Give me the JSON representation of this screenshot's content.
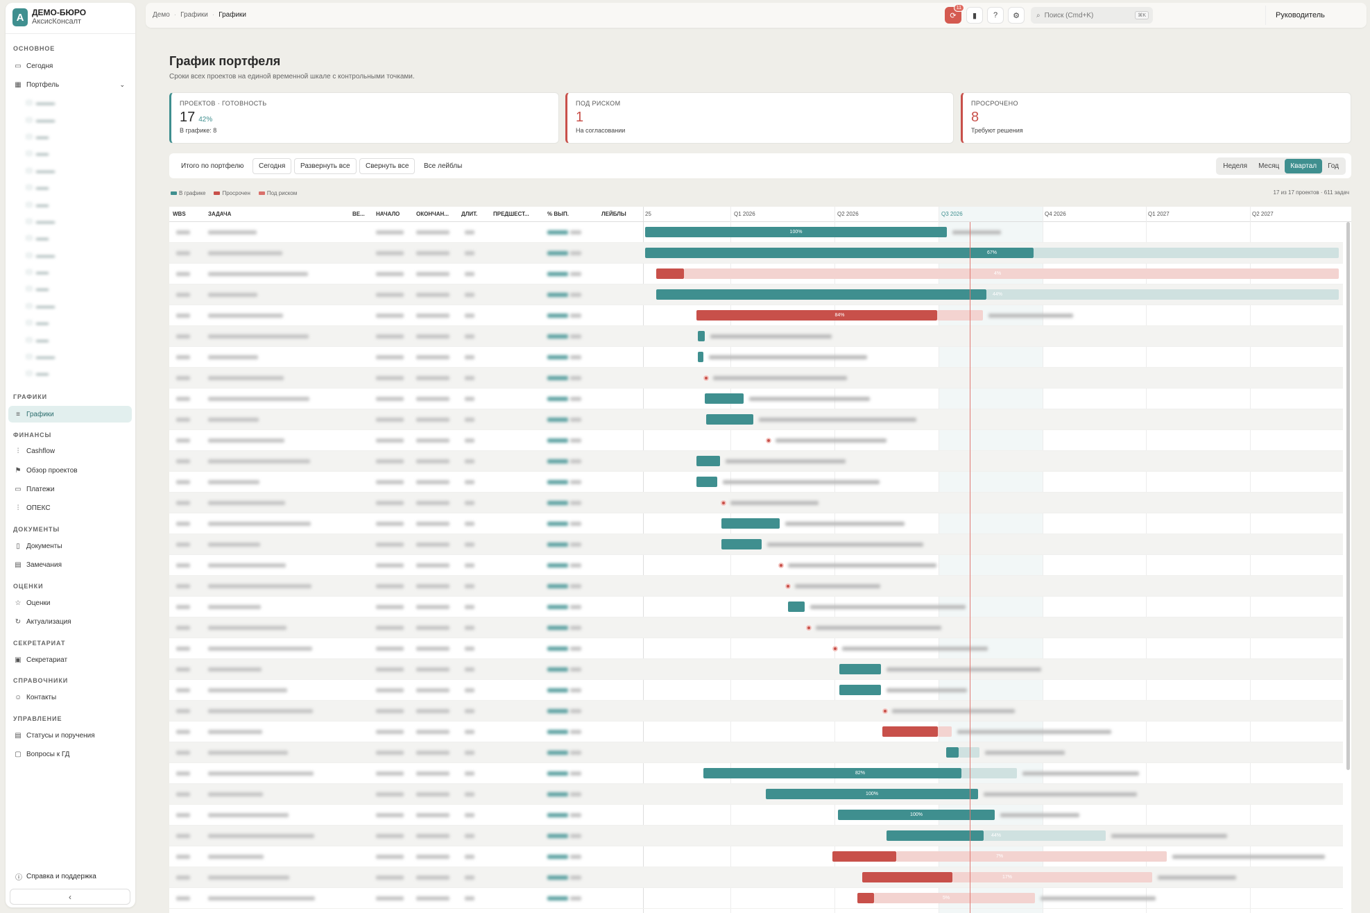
{
  "brand": {
    "logo": "А",
    "name": "ДЕМО-БЮРО",
    "sub": "АксисКонсалт"
  },
  "sidebar": {
    "sections": [
      {
        "label": "ОСНОВНОЕ",
        "items": [
          {
            "label": "Сегодня",
            "icon": "calendar-icon"
          },
          {
            "label": "Портфель",
            "icon": "grid-icon"
          }
        ]
      },
      {
        "label": "ГРАФИКИ",
        "items": [
          {
            "label": "Графики",
            "icon": "gantt-icon",
            "active": true
          }
        ]
      },
      {
        "label": "ФИНАНСЫ",
        "items": [
          {
            "label": "Cashflow",
            "icon": "chart-icon"
          },
          {
            "label": "Обзор проектов",
            "icon": "flag-icon"
          },
          {
            "label": "Платежи",
            "icon": "card-icon"
          },
          {
            "label": "ОПЕКС",
            "icon": "chart-icon"
          }
        ]
      },
      {
        "label": "ДОКУМЕНТЫ",
        "items": [
          {
            "label": "Документы",
            "icon": "document-icon"
          },
          {
            "label": "Замечания",
            "icon": "note-icon"
          }
        ]
      },
      {
        "label": "ОЦЕНКИ",
        "items": [
          {
            "label": "Оценки",
            "icon": "star-icon"
          },
          {
            "label": "Актуализация",
            "icon": "refresh-icon"
          }
        ]
      },
      {
        "label": "СЕКРЕТАРИАТ",
        "items": [
          {
            "label": "Секретариат",
            "icon": "folder-icon"
          }
        ]
      },
      {
        "label": "СПРАВОЧНИКИ",
        "items": [
          {
            "label": "Контакты",
            "icon": "user-icon"
          }
        ]
      },
      {
        "label": "УПРАВЛЕНИЕ",
        "items": [
          {
            "label": "Статусы и поручения",
            "icon": "list-icon"
          },
          {
            "label": "Вопросы к ГД",
            "icon": "chat-icon"
          }
        ]
      }
    ],
    "help": "Справка и поддержка",
    "collapse": "‹"
  },
  "topbar": {
    "crumbs": [
      "Демо",
      "Графики",
      "Графики"
    ],
    "notif_count": "11",
    "search_placeholder": "Поиск (Cmd+K)",
    "search_kbd": "⌘K",
    "role": "Руководитель"
  },
  "page": {
    "title": "График портфеля",
    "subtitle": "Сроки всех проектов на единой временной шкале с контрольными точками."
  },
  "kpis": [
    {
      "label": "ПРОЕКТОВ · ГОТОВНОСТЬ",
      "value": "17",
      "pct": "42%",
      "note": "В графике: 8",
      "tone": "ok"
    },
    {
      "label": "ПОД РИСКОМ",
      "value": "1",
      "pct": "",
      "note": "На согласовании",
      "tone": "risk"
    },
    {
      "label": "ПРОСРОЧЕНО",
      "value": "8",
      "pct": "",
      "note": "Требуют решения",
      "tone": "risk"
    }
  ],
  "toolbar": {
    "total": "Итого по портфелю",
    "today": "Сегодня",
    "expand": "Развернуть все",
    "collapse": "Свернуть все",
    "labels": "Все лейблы",
    "scales": [
      "Неделя",
      "Месяц",
      "Квартал",
      "Год"
    ],
    "active_scale": "Квартал"
  },
  "legend": [
    {
      "label": "В графике",
      "color": "#3f8f8f"
    },
    {
      "label": "Просрочен",
      "color": "#c8504a"
    },
    {
      "label": "Под риском",
      "color": "#d9706a"
    }
  ],
  "count": "17 из 17 проектов · 611 задач",
  "columns": [
    "WBS",
    "ЗАДАЧА",
    "ВЕ...",
    "НАЧАЛО",
    "ОКОНЧАН...",
    "ДЛИТ.",
    "ПРЕДШЕСТ...",
    "% ВЫП.",
    "ЛЕЙБЛЫ"
  ],
  "timeline": [
    "25",
    "Q1 2026",
    "Q2 2026",
    "Q3 2026",
    "Q4 2026",
    "Q1 2027",
    "Q2 2027"
  ],
  "bar_labels": [
    "100%",
    "67%",
    "4%",
    "44%",
    "84%",
    "82%",
    "100%",
    "100%",
    "44%",
    "7%",
    "17%",
    "5%"
  ],
  "colors": {
    "teal": "#3f8f8f",
    "red": "#c8504a",
    "accent_bg": "#e2efee"
  }
}
